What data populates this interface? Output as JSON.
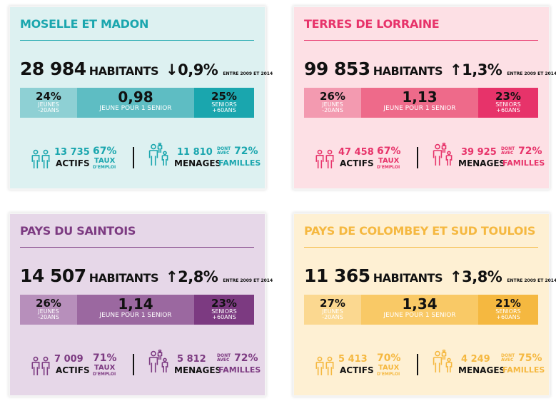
{
  "cards": [
    {
      "title": "MOSELLE ET MADON",
      "population": "28 984",
      "habitants": "HABITANTS",
      "direction": "down",
      "change": "0,9%",
      "period": "ENTRE 2009 ET 2014",
      "jeunes": "24%",
      "jeunes_label": "JEUNES -20ANS",
      "ratio": "0,98",
      "ratio_label": "JEUNE POUR 1 SENIOR",
      "seniors": "25%",
      "seniors_label": "SENIORS +60ANS",
      "actifs": "13 735",
      "actifs_label": "ACTIFS",
      "taux": "67%",
      "taux_label": "TAUX",
      "taux_sub": "D'EMPLOI",
      "menages": "11 810",
      "menages_label": "MENAGES",
      "dont": "DONT AVEC",
      "familles": "72%",
      "familles_label": "FAMILLES",
      "colors": {
        "bg": "#ddf1f1",
        "accent": "#1aa6ae",
        "light": "#8ed0d4",
        "mid": "#5ebdc3",
        "dark": "#1aa6ae",
        "text": "#1aa6ae"
      }
    },
    {
      "title": "TERRES DE LORRAINE",
      "population": "99 853",
      "habitants": "HABITANTS",
      "direction": "up",
      "change": "1,3%",
      "period": "ENTRE 2009 ET 2014",
      "jeunes": "26%",
      "jeunes_label": "JEUNES -20ANS",
      "ratio": "1,13",
      "ratio_label": "JEUNE POUR 1 SENIOR",
      "seniors": "23%",
      "seniors_label": "SENIORS +60ANS",
      "actifs": "47 458",
      "actifs_label": "ACTIFS",
      "taux": "67%",
      "taux_label": "TAUX",
      "taux_sub": "D'EMPLOI",
      "menages": "39 925",
      "menages_label": "MENAGES",
      "dont": "DONT AVEC",
      "familles": "72%",
      "familles_label": "FAMILLES",
      "colors": {
        "bg": "#fde0e5",
        "accent": "#e7336a",
        "light": "#f39ab0",
        "mid": "#ee6a8a",
        "dark": "#e7336a",
        "text": "#e7336a"
      }
    },
    {
      "title": "PAYS DU SAINTOIS",
      "population": "14 507",
      "habitants": "HABITANTS",
      "direction": "up",
      "change": "2,8%",
      "period": "ENTRE 2009 ET 2014",
      "jeunes": "26%",
      "jeunes_label": "JEUNES -20ANS",
      "ratio": "1,14",
      "ratio_label": "JEUNE POUR 1 SENIOR",
      "seniors": "23%",
      "seniors_label": "SENIORS +60ANS",
      "actifs": "7 009",
      "actifs_label": "ACTIFS",
      "taux": "71%",
      "taux_label": "TAUX",
      "taux_sub": "D'EMPLOI",
      "menages": "5 812",
      "menages_label": "MENAGES",
      "dont": "DONT AVEC",
      "familles": "72%",
      "familles_label": "FAMILLES",
      "colors": {
        "bg": "#e6d7e8",
        "accent": "#7c3a81",
        "light": "#b78fbb",
        "mid": "#9b68a0",
        "dark": "#7c3a81",
        "text": "#7c3a81"
      }
    },
    {
      "title": "PAYS DE COLOMBEY ET SUD TOULOIS",
      "population": "11 365",
      "habitants": "HABITANTS",
      "direction": "up",
      "change": "3,8%",
      "period": "ENTRE 2009 ET 2014",
      "jeunes": "27%",
      "jeunes_label": "JEUNES -20ANS",
      "ratio": "1,34",
      "ratio_label": "JEUNE POUR 1 SENIOR",
      "seniors": "21%",
      "seniors_label": "SENIORS +60ANS",
      "actifs": "5 413",
      "actifs_label": "ACTIFS",
      "taux": "70%",
      "taux_label": "TAUX",
      "taux_sub": "D'EMPLOI",
      "menages": "4 249",
      "menages_label": "MENAGES",
      "dont": "DONT AVEC",
      "familles": "75%",
      "familles_label": "FAMILLES",
      "colors": {
        "bg": "#fef0d3",
        "accent": "#f5b840",
        "light": "#fbd890",
        "mid": "#f9c966",
        "dark": "#f5b840",
        "text": "#f5b840"
      }
    }
  ]
}
